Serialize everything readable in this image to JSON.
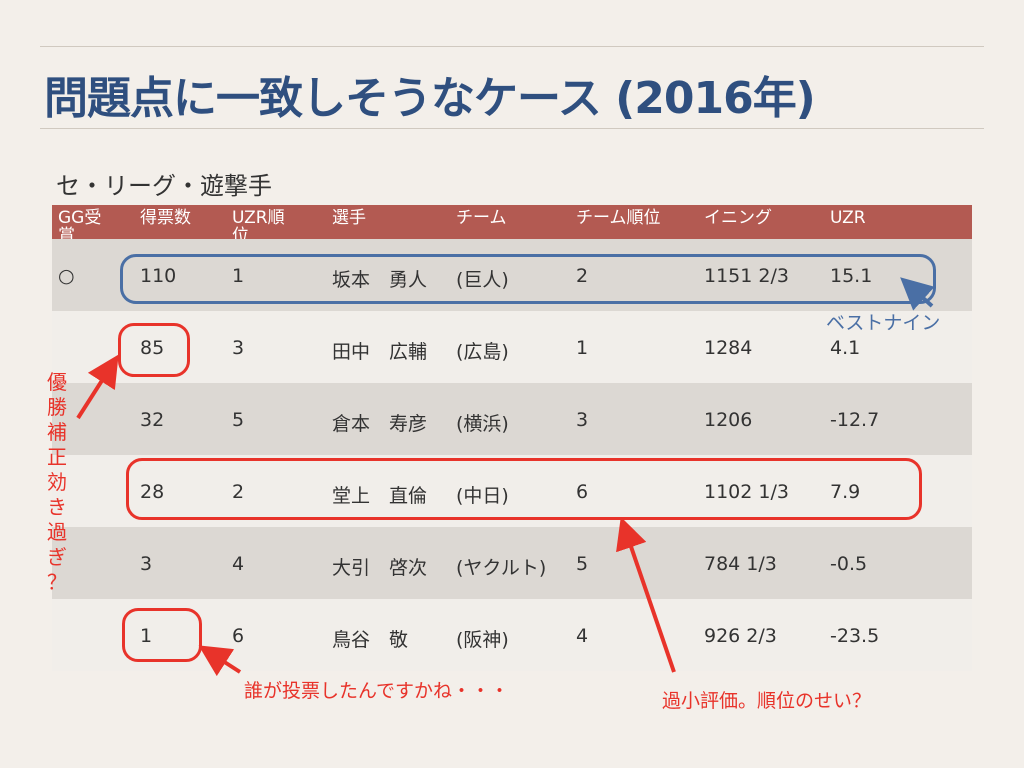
{
  "title": "問題点に一致しそうなケース (2016年)",
  "subtitle": "セ・リーグ・遊撃手",
  "table": {
    "headers": [
      "GG受賞",
      "得票数",
      "UZR順位",
      "選手",
      "チーム",
      "チーム順位",
      "イニング",
      "UZR"
    ],
    "rows": [
      [
        "○",
        "110",
        "1",
        "坂本　勇人",
        "(巨人)",
        "2",
        "1151 2/3",
        "15.1"
      ],
      [
        "",
        "85",
        "3",
        "田中　広輔",
        "(広島)",
        "1",
        "1284",
        "4.1"
      ],
      [
        "",
        "32",
        "5",
        "倉本　寿彦",
        "(横浜)",
        "3",
        "1206",
        "-12.7"
      ],
      [
        "",
        "28",
        "2",
        "堂上　直倫",
        "(中日)",
        "6",
        "1102 1/3",
        "7.9"
      ],
      [
        "",
        "3",
        "4",
        "大引　啓次",
        "(ヤクルト)",
        "5",
        "784 1/3",
        "-0.5"
      ],
      [
        "",
        "1",
        "6",
        "鳥谷　敬",
        "(阪神)",
        "4",
        "926 2/3",
        "-23.5"
      ]
    ]
  },
  "annotations": {
    "best_nine": "ベストナイン",
    "vertical_chars": [
      "優",
      "勝",
      "補",
      "正",
      "効",
      "き",
      "過",
      "ぎ",
      "？"
    ],
    "who_voted": "誰が投票したんですかね・・・",
    "underrated": "過小評価。順位のせい？"
  },
  "colors": {
    "title": "#2f4f7f",
    "header_bg": "#b35a52",
    "highlight_blue": "#4a6fa5",
    "highlight_red": "#e8332a"
  }
}
